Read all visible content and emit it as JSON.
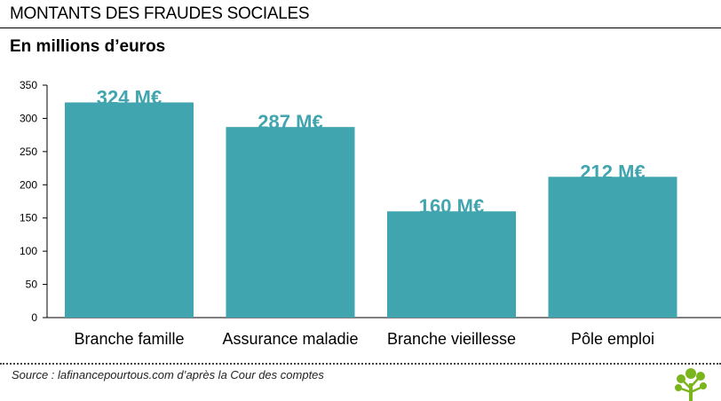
{
  "header": {
    "title": "MONTANTS DES FRAUDES SOCIALES",
    "subtitle": "En millions d’euros"
  },
  "source": "Source : lafinancepourtous.com d’après la Cour des comptes",
  "logo": {
    "icon": "tree-logo-icon",
    "color": "#7ab51d"
  },
  "colors": {
    "bar": "#41a5b0",
    "label": "#41a5b0",
    "axis": "#000000"
  },
  "chart_data": {
    "type": "bar",
    "title": "MONTANTS DES FRAUDES SOCIALES",
    "subtitle": "En millions d’euros",
    "categories": [
      "Branche famille",
      "Assurance maladie",
      "Branche vieillesse",
      "Pôle emploi"
    ],
    "values": [
      324,
      287,
      160,
      212
    ],
    "data_labels": [
      "324 M€",
      "287 M€",
      "160 M€",
      "212 M€"
    ],
    "ylim": [
      0,
      350
    ],
    "yticks": [
      "0",
      "50",
      "100",
      "150",
      "200",
      "250",
      "300",
      "350"
    ],
    "xlabel": "",
    "ylabel": "",
    "grid": false,
    "legend": "none"
  }
}
